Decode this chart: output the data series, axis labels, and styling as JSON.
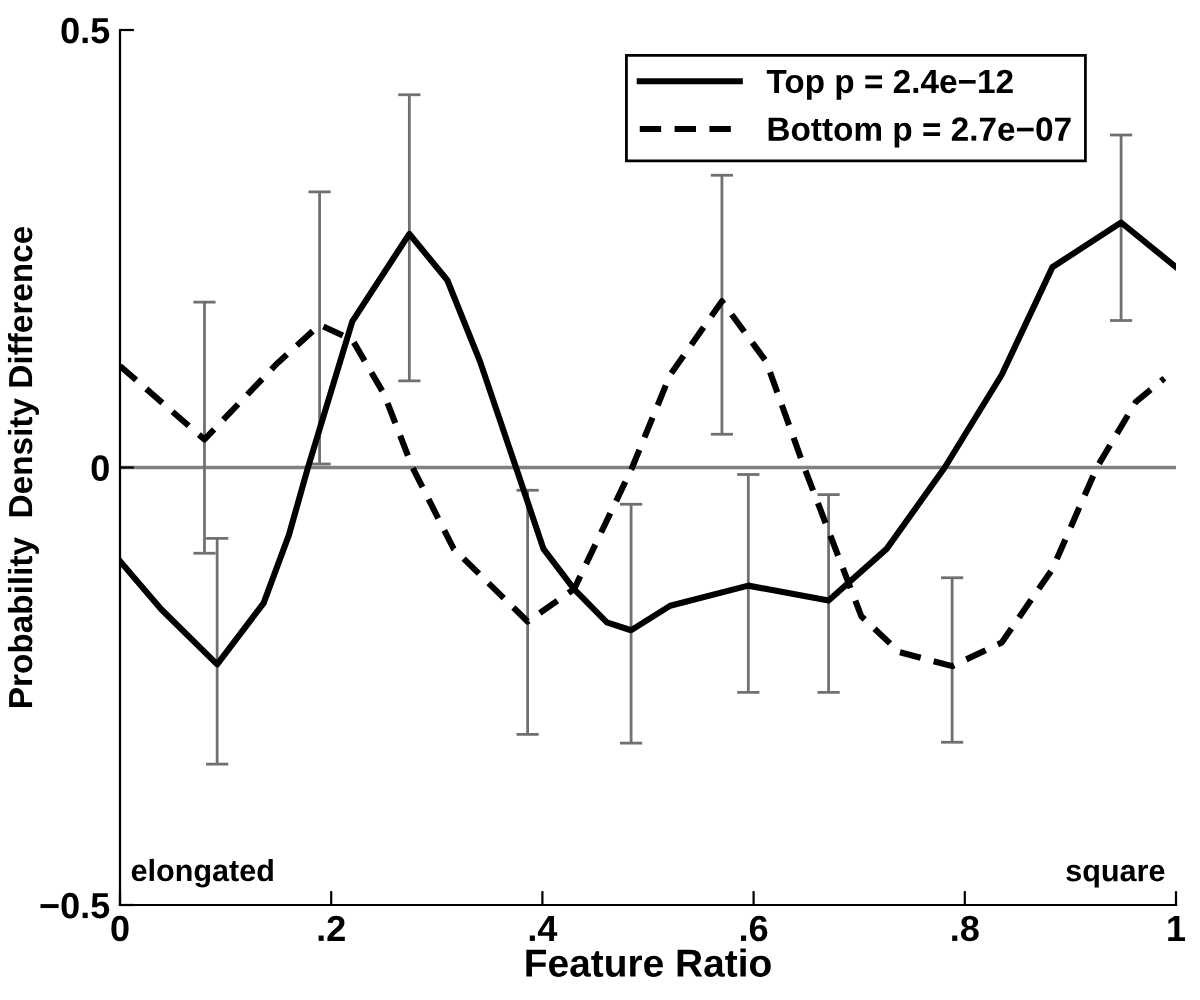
{
  "chart_data": {
    "type": "line",
    "xlabel": "Feature Ratio",
    "ylabel": "Probability  Density Difference",
    "xlim": [
      0,
      1
    ],
    "xticks": [
      0,
      {
        "value": 0.2,
        "label": ".2"
      },
      {
        "value": 0.4,
        "label": ".4"
      },
      {
        "value": 0.6,
        "label": ".6"
      },
      {
        "value": 0.8,
        "label": ".8"
      },
      1
    ],
    "ylim": [
      -0.5,
      0.5
    ],
    "yticks": [
      {
        "value": -0.5,
        "label": "−0.5"
      },
      0,
      0.5
    ],
    "grid": false,
    "legend": "top right",
    "ref_lines": [
      {
        "axis": "y",
        "value": 0,
        "color": "#808080"
      }
    ],
    "annotations": [
      "elongated",
      "square"
    ],
    "series": [
      {
        "name": "Top p = 2.4e−12",
        "color": "#000000",
        "line_style": "solid",
        "x": [
          0,
          0.039,
          0.092,
          0.136,
          0.16,
          0.178,
          0.22,
          0.274,
          0.31,
          0.341,
          0.375,
          0.401,
          0.43,
          0.461,
          0.484,
          0.521,
          0.595,
          0.671,
          0.726,
          0.781,
          0.835,
          0.883,
          0.948,
          1.0
        ],
        "values": [
          -0.107,
          -0.162,
          -0.225,
          -0.155,
          -0.077,
          0,
          0.167,
          0.267,
          0.214,
          0.121,
          0,
          -0.093,
          -0.139,
          -0.177,
          -0.186,
          -0.158,
          -0.135,
          -0.152,
          -0.093,
          0,
          0.106,
          0.229,
          0.28,
          0.229
        ],
        "errors": [
          null,
          null,
          [
            -0.339,
            -0.081
          ],
          null,
          null,
          null,
          null,
          [
            0.099,
            0.426
          ],
          null,
          null,
          null,
          null,
          null,
          null,
          [
            -0.315,
            -0.042
          ],
          null,
          [
            -0.257,
            -0.008
          ],
          [
            -0.257,
            -0.031
          ],
          null,
          null,
          null,
          null,
          [
            0.168,
            0.38
          ],
          null
        ]
      },
      {
        "name": "Bottom p = 2.7e−07",
        "color": "#000000",
        "line_style": "dashed",
        "x": [
          0,
          0.08,
          0.148,
          0.189,
          0.22,
          0.25,
          0.277,
          0.316,
          0.386,
          0.43,
          0.485,
          0.521,
          0.57,
          0.612,
          0.648,
          0.702,
          0.738,
          0.788,
          0.835,
          0.883,
          0.925,
          0.962,
          0.989
        ],
        "values": [
          0.116,
          0.032,
          0.118,
          0.163,
          0.146,
          0.084,
          0,
          -0.093,
          -0.176,
          -0.139,
          0,
          0.106,
          0.19,
          0.121,
          0,
          -0.17,
          -0.211,
          -0.227,
          -0.2,
          -0.116,
          0,
          0.075,
          0.102
        ],
        "errors": [
          null,
          [
            -0.098,
            0.189
          ],
          null,
          [
            0.004,
            0.315
          ],
          null,
          null,
          null,
          null,
          [
            -0.305,
            -0.026
          ],
          null,
          null,
          null,
          [
            0.038,
            0.334
          ],
          null,
          null,
          null,
          null,
          [
            -0.314,
            -0.126
          ],
          null,
          null,
          null,
          null,
          null
        ]
      }
    ]
  }
}
